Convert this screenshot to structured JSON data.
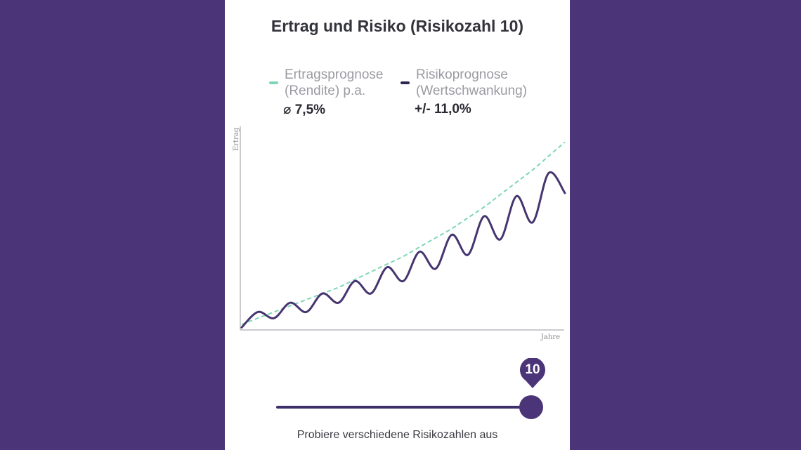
{
  "colors": {
    "background": "#4b3578",
    "card": "#ffffff",
    "accent_purple": "#4b3578",
    "risk_line": "#46356f",
    "return_line": "#7fd6b5"
  },
  "legend": {
    "return": {
      "label_line1": "Ertragsprognose",
      "label_line2": "(Rendite) p.a.",
      "value": "⌀ 7,5%"
    },
    "risk": {
      "label_line1": "Risikoprognose",
      "label_line2": "(Wertschwankung)",
      "value": "+/- 11,0%"
    }
  },
  "slider": {
    "value": "10",
    "hint": "Probiere verschiedene Risikozahlen aus"
  },
  "chart_data": {
    "type": "line",
    "title": "Ertrag und Risiko (Risikozahl 10)",
    "xlabel": "Jahre",
    "ylabel": "Ertrag",
    "x": [
      0,
      0.5,
      1,
      1.5,
      2,
      2.5,
      3,
      3.5,
      4,
      4.5,
      5,
      5.5,
      6,
      6.5,
      7,
      7.5,
      8,
      8.5,
      9,
      9.5,
      10
    ],
    "series": [
      {
        "name": "Ertragsprognose (Rendite) p.a.",
        "style": "dashed",
        "color": "#7fd6b5",
        "values": [
          1.0,
          1.04,
          1.08,
          1.12,
          1.16,
          1.2,
          1.24,
          1.29,
          1.34,
          1.39,
          1.44,
          1.5,
          1.56,
          1.62,
          1.69,
          1.76,
          1.84,
          1.92,
          2.0,
          2.09,
          2.18
        ]
      },
      {
        "name": "Risikoprognose (Wertschwankung)",
        "style": "solid",
        "color": "#46356f",
        "values": [
          0.98,
          1.08,
          1.04,
          1.14,
          1.08,
          1.2,
          1.14,
          1.28,
          1.2,
          1.37,
          1.28,
          1.47,
          1.36,
          1.58,
          1.45,
          1.7,
          1.55,
          1.83,
          1.66,
          1.98,
          1.85
        ]
      }
    ],
    "grid": false,
    "legend": "top"
  }
}
